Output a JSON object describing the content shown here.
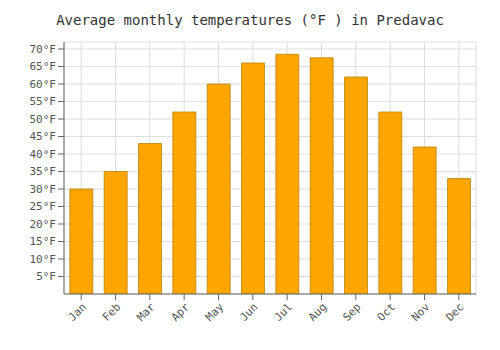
{
  "chart_data": {
    "type": "bar",
    "title": "Average monthly temperatures (°F ) in Predavac",
    "categories": [
      "Jan",
      "Feb",
      "Mar",
      "Apr",
      "May",
      "Jun",
      "Jul",
      "Aug",
      "Sep",
      "Oct",
      "Nov",
      "Dec"
    ],
    "values": [
      30,
      35,
      43,
      52,
      60,
      66,
      68.5,
      67.5,
      62,
      52,
      42,
      33
    ],
    "color": "#FFA500",
    "ylim": [
      0,
      72
    ],
    "yticks": [
      {
        "value": 5,
        "label": "5°F"
      },
      {
        "value": 10,
        "label": "10°F"
      },
      {
        "value": 15,
        "label": "15°F"
      },
      {
        "value": 20,
        "label": "20°F"
      },
      {
        "value": 25,
        "label": "25°F"
      },
      {
        "value": 30,
        "label": "30°F"
      },
      {
        "value": 35,
        "label": "35°F"
      },
      {
        "value": 40,
        "label": "40°F"
      },
      {
        "value": 45,
        "label": "45°F"
      },
      {
        "value": 50,
        "label": "50°F"
      },
      {
        "value": 55,
        "label": "55°F"
      },
      {
        "value": 60,
        "label": "60°F"
      },
      {
        "value": 65,
        "label": "65°F"
      },
      {
        "value": 70,
        "label": "70°F"
      }
    ],
    "grid": true
  }
}
